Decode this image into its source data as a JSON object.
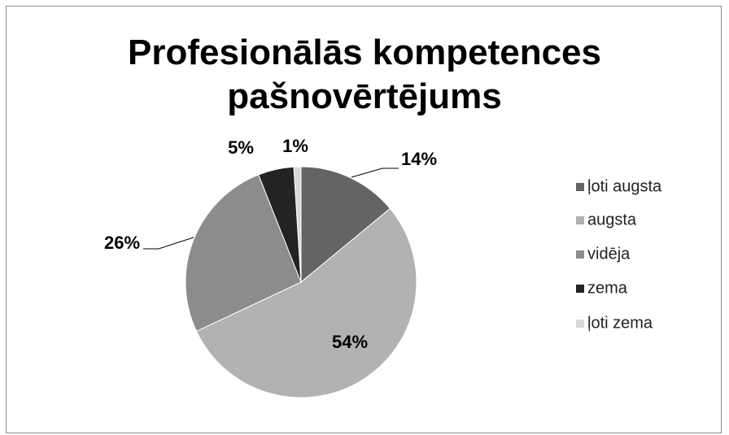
{
  "chart_data": {
    "type": "pie",
    "title": "Profesionālās kompetences pašnovērtējums",
    "categories": [
      "ļoti augsta",
      "augsta",
      "vidēja",
      "zema",
      "ļoti zema"
    ],
    "values": [
      14,
      54,
      26,
      5,
      1
    ],
    "value_labels": [
      "14%",
      "54%",
      "26%",
      "5%",
      "1%"
    ],
    "colors": [
      "#646464",
      "#b2b2b2",
      "#8c8c8c",
      "#232323",
      "#d9d9d9"
    ],
    "legend": "right"
  }
}
